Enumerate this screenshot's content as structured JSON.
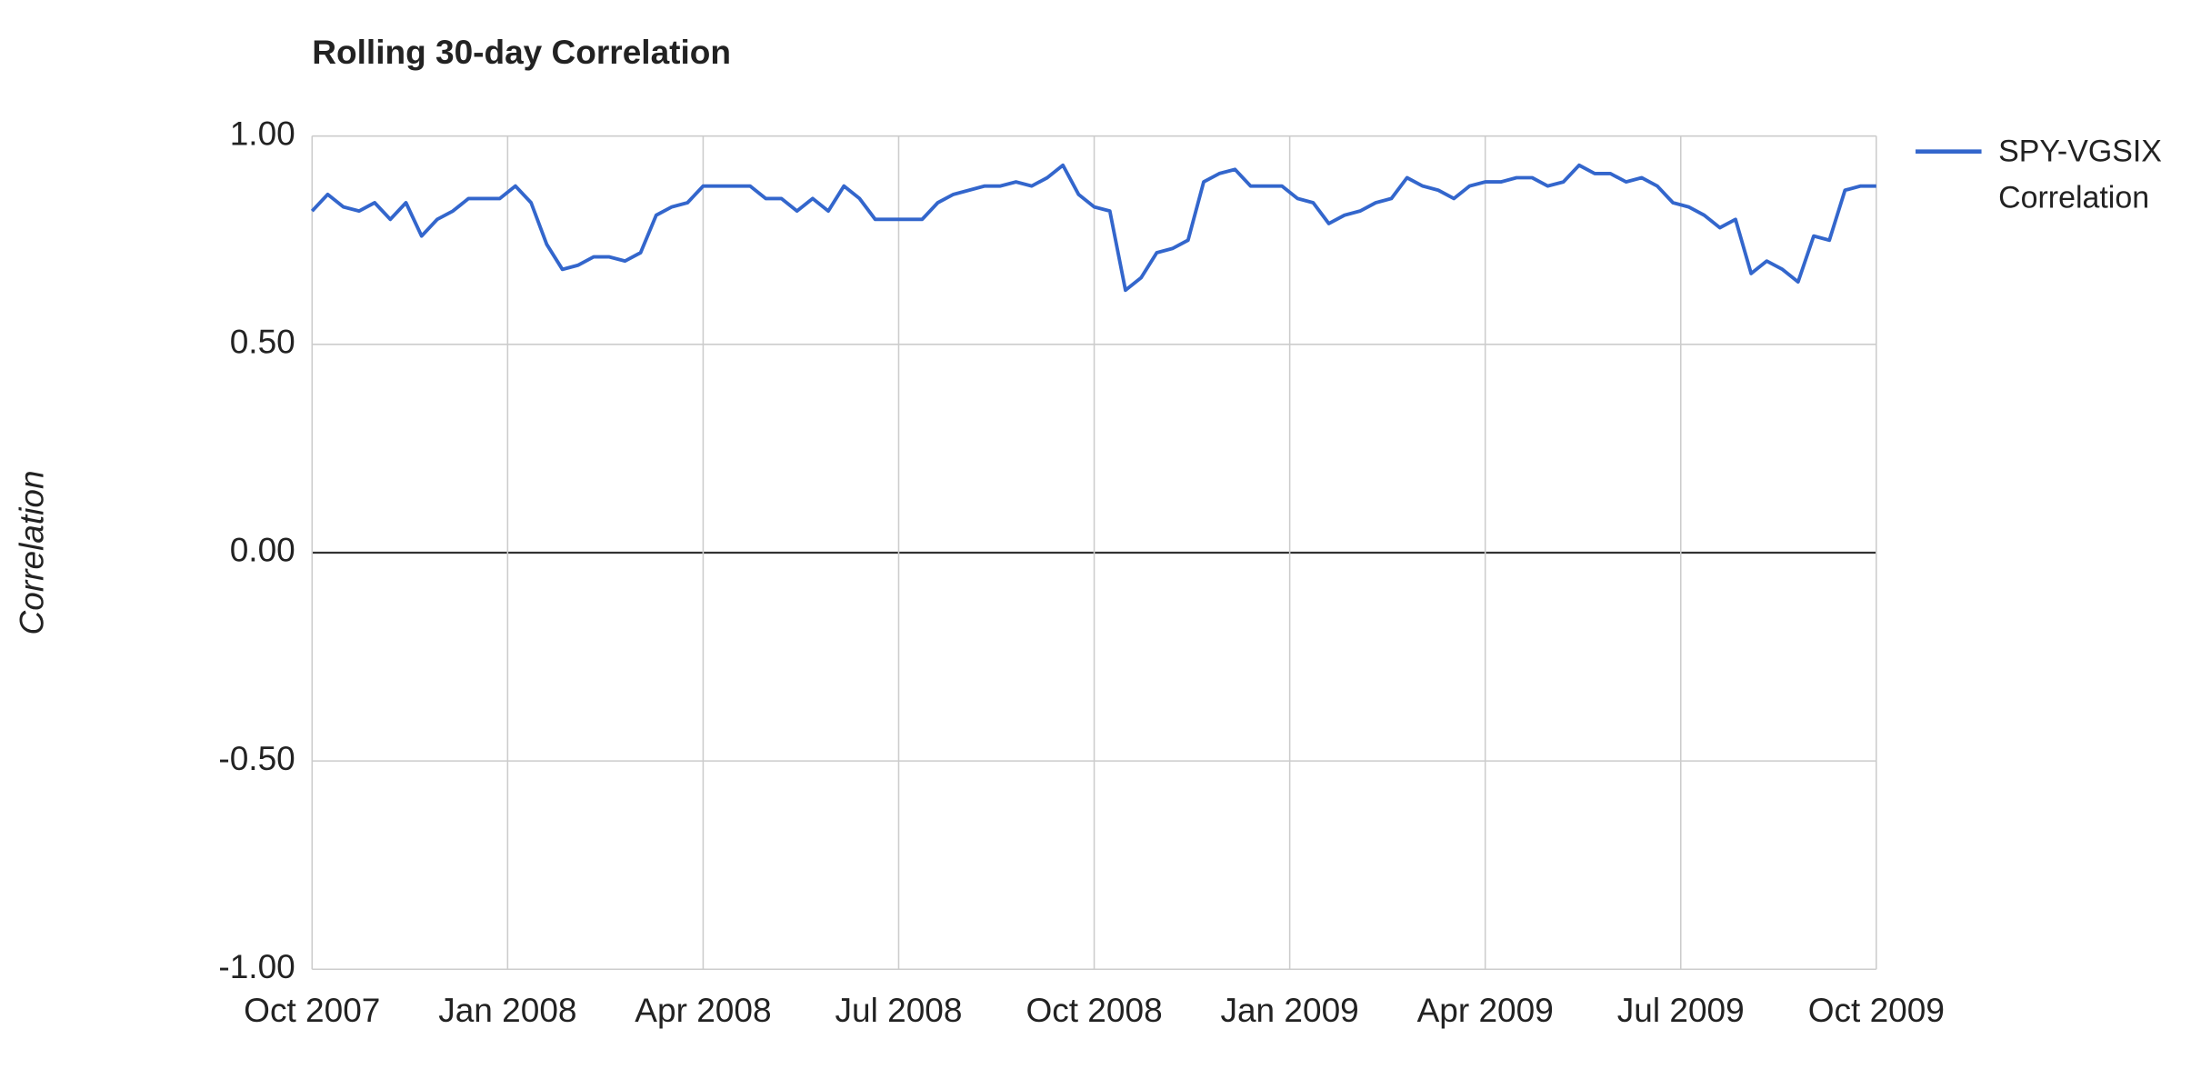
{
  "chart_data": {
    "type": "line",
    "title": "Rolling 30-day Correlation",
    "y_label": "Correlation",
    "x": [
      2007.75,
      2007.77,
      2007.79,
      2007.81,
      2007.83,
      2007.85,
      2007.87,
      2007.89,
      2007.91,
      2007.93,
      2007.95,
      2007.97,
      2007.99,
      2008.01,
      2008.03,
      2008.05,
      2008.07,
      2008.09,
      2008.11,
      2008.13,
      2008.15,
      2008.17,
      2008.19,
      2008.21,
      2008.23,
      2008.25,
      2008.27,
      2008.29,
      2008.31,
      2008.33,
      2008.35,
      2008.37,
      2008.39,
      2008.41,
      2008.43,
      2008.45,
      2008.47,
      2008.49,
      2008.51,
      2008.53,
      2008.55,
      2008.57,
      2008.59,
      2008.61,
      2008.63,
      2008.65,
      2008.67,
      2008.69,
      2008.71,
      2008.73,
      2008.75,
      2008.77,
      2008.79,
      2008.81,
      2008.83,
      2008.85,
      2008.87,
      2008.89,
      2008.91,
      2008.93,
      2008.95,
      2008.97,
      2008.99,
      2009.01,
      2009.03,
      2009.05,
      2009.07,
      2009.09,
      2009.11,
      2009.13,
      2009.15,
      2009.17,
      2009.19,
      2009.21,
      2009.23,
      2009.25,
      2009.27,
      2009.29,
      2009.31,
      2009.33,
      2009.35,
      2009.37,
      2009.39,
      2009.41,
      2009.43,
      2009.45,
      2009.47,
      2009.49,
      2009.51,
      2009.53,
      2009.55,
      2009.57,
      2009.59,
      2009.61,
      2009.63,
      2009.65,
      2009.67,
      2009.69,
      2009.71,
      2009.73,
      2009.75
    ],
    "series": [
      {
        "name": "SPY-VGSIX Correlation",
        "color": "#3366cc",
        "values": [
          0.82,
          0.86,
          0.83,
          0.82,
          0.84,
          0.8,
          0.84,
          0.76,
          0.8,
          0.82,
          0.85,
          0.85,
          0.85,
          0.88,
          0.84,
          0.74,
          0.68,
          0.69,
          0.71,
          0.71,
          0.7,
          0.72,
          0.81,
          0.83,
          0.84,
          0.88,
          0.88,
          0.88,
          0.88,
          0.85,
          0.85,
          0.82,
          0.85,
          0.82,
          0.88,
          0.85,
          0.8,
          0.8,
          0.8,
          0.8,
          0.84,
          0.86,
          0.87,
          0.88,
          0.88,
          0.89,
          0.88,
          0.9,
          0.93,
          0.86,
          0.83,
          0.82,
          0.63,
          0.66,
          0.72,
          0.73,
          0.75,
          0.89,
          0.91,
          0.92,
          0.88,
          0.88,
          0.88,
          0.85,
          0.84,
          0.79,
          0.81,
          0.82,
          0.84,
          0.85,
          0.9,
          0.88,
          0.87,
          0.85,
          0.88,
          0.89,
          0.89,
          0.9,
          0.9,
          0.88,
          0.89,
          0.93,
          0.91,
          0.91,
          0.89,
          0.9,
          0.88,
          0.84,
          0.83,
          0.81,
          0.78,
          0.8,
          0.67,
          0.7,
          0.68,
          0.65,
          0.76,
          0.75,
          0.87,
          0.88,
          0.88
        ]
      }
    ],
    "xlim": [
      2007.75,
      2009.75
    ],
    "xticks": [
      {
        "value": 2007.75,
        "label": "Oct 2007"
      },
      {
        "value": 2008.0,
        "label": "Jan 2008"
      },
      {
        "value": 2008.25,
        "label": "Apr 2008"
      },
      {
        "value": 2008.5,
        "label": "Jul 2008"
      },
      {
        "value": 2008.75,
        "label": "Oct 2008"
      },
      {
        "value": 2009.0,
        "label": "Jan 2009"
      },
      {
        "value": 2009.25,
        "label": "Apr 2009"
      },
      {
        "value": 2009.5,
        "label": "Jul 2009"
      },
      {
        "value": 2009.75,
        "label": "Oct 2009"
      }
    ],
    "ylim": [
      -1,
      1
    ],
    "yticks": [
      {
        "value": -1,
        "label": "-1.00"
      },
      {
        "value": -0.5,
        "label": "-0.50"
      },
      {
        "value": 0,
        "label": "0.00"
      },
      {
        "value": 0.5,
        "label": "0.50"
      },
      {
        "value": 1,
        "label": "1.00"
      }
    ],
    "grid": true,
    "legend": "right"
  }
}
